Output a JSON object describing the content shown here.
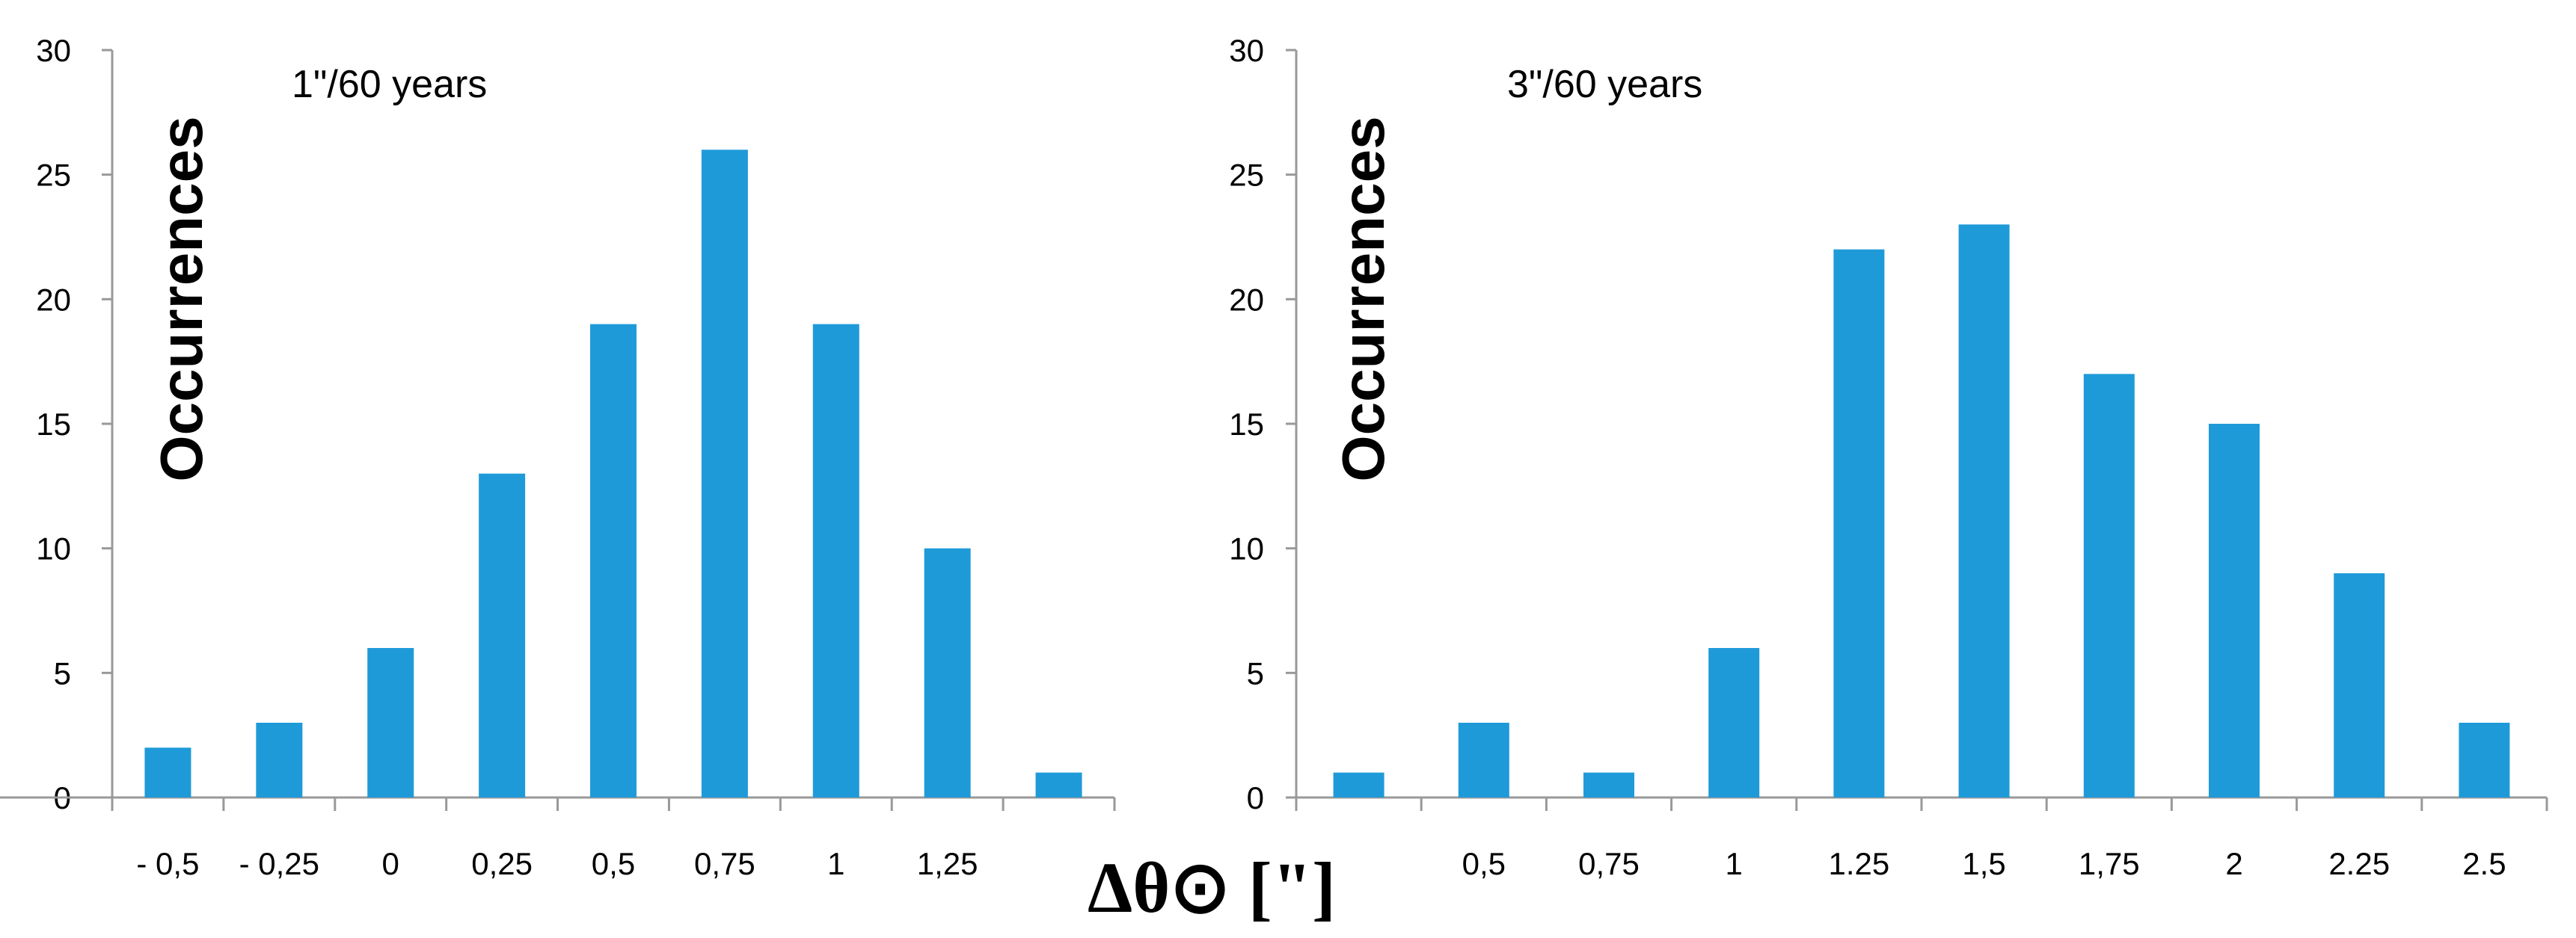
{
  "x_axis_label": "Δθ⊙ [\"]",
  "colors": {
    "bar": "#1f9ad9",
    "axis": "#999999"
  },
  "chart_data": [
    {
      "type": "bar",
      "title": "1\"/60 years",
      "ylabel": "Occurrences",
      "xlabel": "Δθ⊙ [\"]",
      "ylim": [
        0,
        30
      ],
      "yticks": [
        "0",
        "5",
        "10",
        "15",
        "20",
        "25",
        "30"
      ],
      "categories": [
        "- 0,5",
        "- 0,25",
        "0",
        "0,25",
        "0,5",
        "0,75",
        "1",
        "1,25",
        ""
      ],
      "values": [
        2,
        3,
        6,
        13,
        19,
        26,
        19,
        10,
        1
      ],
      "grid": false,
      "legend": "none"
    },
    {
      "type": "bar",
      "title": "3\"/60 years",
      "ylabel": "Occurrences",
      "xlabel": "Δθ⊙ [\"]",
      "ylim": [
        0,
        30
      ],
      "yticks": [
        "0",
        "5",
        "10",
        "15",
        "20",
        "25",
        "30"
      ],
      "categories": [
        "",
        "0,5",
        "0,75",
        "1",
        "1.25",
        "1,5",
        "1,75",
        "2",
        "2.25",
        "2.5"
      ],
      "values": [
        1,
        3,
        1,
        6,
        22,
        23,
        17,
        15,
        9,
        3
      ],
      "grid": false,
      "legend": "none"
    }
  ]
}
